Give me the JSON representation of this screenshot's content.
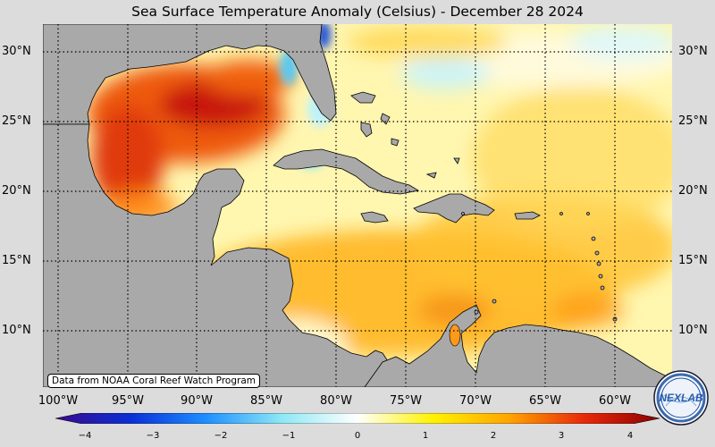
{
  "title": "Sea Surface Temperature Anomaly (Celsius) - December 28 2024",
  "credit": "Data from NOAA Coral Reef Watch Program",
  "lat_labels": [
    "30°N",
    "25°N",
    "20°N",
    "15°N",
    "10°N"
  ],
  "lon_labels": [
    "100°W",
    "95°W",
    "90°W",
    "85°W",
    "80°W",
    "75°W",
    "70°W",
    "65°W",
    "60°W"
  ],
  "colorbar": {
    "ticks": [
      "−4",
      "−3",
      "−2",
      "−1",
      "0",
      "1",
      "2",
      "3",
      "4"
    ],
    "colors": [
      "#3b0a8c",
      "#0a2fd6",
      "#1e90ff",
      "#8ee8f5",
      "#ffffff",
      "#fff200",
      "#ffa500",
      "#e8290b",
      "#8b0000"
    ]
  },
  "logo": {
    "text": "NEXLAB"
  },
  "colors": {
    "land": "#a9a9a9",
    "background": "#dcdcdc"
  }
}
